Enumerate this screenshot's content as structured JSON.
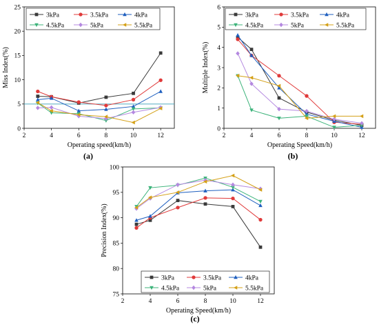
{
  "chart_data": [
    {
      "type": "line",
      "panel_label": "(a)",
      "xlabel": "Operating speed(km/h)",
      "ylabel": "Miss Index(%)",
      "xlim": [
        2,
        13
      ],
      "ylim": [
        0,
        25
      ],
      "xticks": [
        2,
        4,
        6,
        8,
        10,
        12
      ],
      "yticks": [
        0,
        5,
        10,
        15,
        20,
        25
      ],
      "reference_line": 5,
      "legend_position": "top-left",
      "x": [
        3,
        4,
        6,
        8,
        10,
        12
      ],
      "series": [
        {
          "name": "3kPa",
          "color": "#3a3a3a",
          "marker": "square",
          "values": [
            6.6,
            6.5,
            5.2,
            6.4,
            7.2,
            15.5
          ]
        },
        {
          "name": "3.5kPa",
          "color": "#e03a3a",
          "marker": "circle",
          "values": [
            7.6,
            6.5,
            5.4,
            4.7,
            5.9,
            9.9
          ]
        },
        {
          "name": "4kPa",
          "color": "#1f5fbf",
          "marker": "triangle-up",
          "values": [
            5.9,
            6.2,
            3.6,
            3.9,
            4.5,
            7.6
          ]
        },
        {
          "name": "4.5kPa",
          "color": "#3cb37a",
          "marker": "triangle-down",
          "values": [
            5.2,
            3.2,
            3.0,
            1.6,
            4.0,
            4.2
          ]
        },
        {
          "name": "5kPa",
          "color": "#b488e0",
          "marker": "diamond",
          "values": [
            4.2,
            4.3,
            2.5,
            2.0,
            3.3,
            4.3
          ]
        },
        {
          "name": "5.5kPa",
          "color": "#d4a017",
          "marker": "triangle-left",
          "values": [
            5.3,
            3.6,
            2.8,
            2.4,
            1.2,
            4.1
          ]
        }
      ]
    },
    {
      "type": "line",
      "panel_label": "(b)",
      "xlabel": "Operating Speed(km/h)",
      "ylabel": "Multiple Index(%)",
      "xlim": [
        2,
        13
      ],
      "ylim": [
        0,
        6
      ],
      "xticks": [
        2,
        4,
        6,
        8,
        10,
        12
      ],
      "yticks": [
        0,
        1,
        2,
        3,
        4,
        5,
        6
      ],
      "legend_position": "top-left",
      "x": [
        3,
        4,
        6,
        8,
        10,
        12
      ],
      "series": [
        {
          "name": "3kPa",
          "color": "#3a3a3a",
          "marker": "square",
          "values": [
            4.5,
            3.9,
            1.5,
            0.8,
            0.4,
            0.15
          ]
        },
        {
          "name": "3.5kPa",
          "color": "#e03a3a",
          "marker": "circle",
          "values": [
            4.4,
            3.6,
            2.6,
            1.6,
            0.3,
            0.2
          ]
        },
        {
          "name": "4kPa",
          "color": "#1f5fbf",
          "marker": "triangle-up",
          "values": [
            4.6,
            3.6,
            2.0,
            0.7,
            0.35,
            0.05
          ]
        },
        {
          "name": "4.5kPa",
          "color": "#3cb37a",
          "marker": "triangle-down",
          "values": [
            2.6,
            0.9,
            0.5,
            0.6,
            0.05,
            0.15
          ]
        },
        {
          "name": "5kPa",
          "color": "#b488e0",
          "marker": "diamond",
          "values": [
            3.7,
            2.2,
            0.95,
            0.85,
            0.45,
            0.25
          ]
        },
        {
          "name": "5.5kPa",
          "color": "#d4a017",
          "marker": "triangle-left",
          "values": [
            2.6,
            2.5,
            2.1,
            0.5,
            0.6,
            0.6
          ]
        }
      ]
    },
    {
      "type": "line",
      "panel_label": "(c)",
      "xlabel": "Operating Speed(km/h)",
      "ylabel": "Precision Index(%)",
      "xlim": [
        2,
        13
      ],
      "ylim": [
        75,
        100
      ],
      "xticks": [
        2,
        4,
        6,
        8,
        10,
        12
      ],
      "yticks": [
        75,
        80,
        85,
        90,
        95,
        100
      ],
      "legend_position": "bottom-center",
      "x": [
        3,
        4,
        6,
        8,
        10,
        12
      ],
      "series": [
        {
          "name": "3kPa",
          "color": "#3a3a3a",
          "marker": "square",
          "values": [
            88.7,
            89.5,
            93.4,
            92.7,
            92.2,
            84.2
          ]
        },
        {
          "name": "3.5kPa",
          "color": "#e03a3a",
          "marker": "circle",
          "values": [
            88.0,
            90.0,
            92.0,
            93.9,
            93.8,
            89.6
          ]
        },
        {
          "name": "4kPa",
          "color": "#1f5fbf",
          "marker": "triangle-up",
          "values": [
            89.5,
            90.3,
            94.9,
            95.3,
            95.5,
            92.4
          ]
        },
        {
          "name": "4.5kPa",
          "color": "#3cb37a",
          "marker": "triangle-down",
          "values": [
            92.2,
            95.9,
            96.4,
            97.8,
            96.0,
            93.2
          ]
        },
        {
          "name": "5kPa",
          "color": "#b488e0",
          "marker": "diamond",
          "values": [
            91.8,
            93.8,
            96.5,
            97.4,
            96.5,
            95.7
          ]
        },
        {
          "name": "5.5kPa",
          "color": "#d4a017",
          "marker": "triangle-left",
          "values": [
            92.0,
            94.0,
            95.0,
            97.1,
            98.3,
            95.5
          ]
        }
      ]
    }
  ]
}
